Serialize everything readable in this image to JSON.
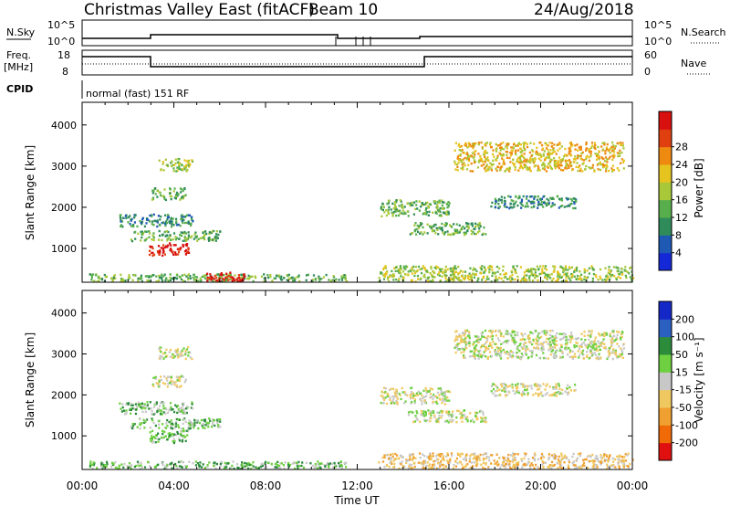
{
  "header": {
    "title": "Christmas Valley East (fitACF)",
    "beam": "Beam 10",
    "date": "24/Aug/2018"
  },
  "summary": {
    "nsky_label": "N.Sky",
    "nsky_ticks": [
      "10^5",
      "10^0"
    ],
    "nsearch_label": "N.Search",
    "nsearch_ticks": [
      "10^5",
      "10^0"
    ],
    "freq_label_top": "Freq.",
    "freq_label_unit": "[MHz]",
    "freq_ticks": [
      "18",
      "8"
    ],
    "nave_label": "Nave",
    "nave_ticks": [
      "60",
      "0"
    ],
    "cpid_label": "CPID",
    "cpid_text": "normal (fast) 151 RF"
  },
  "chart_data": [
    {
      "type": "heatmap",
      "name": "power",
      "ylabel": "Slant Range [km]",
      "yticks": [
        1000,
        2000,
        3000,
        4000
      ],
      "ylim": [
        180,
        4550
      ],
      "xlim": [
        0,
        24
      ],
      "colorbar_label": "Power [dB]",
      "colorbar_ticks": [
        "4",
        "8",
        "12",
        "16",
        "20",
        "24",
        "28"
      ],
      "colors": [
        "#1428d8",
        "#1e5ab4",
        "#2f8c5a",
        "#58ae4c",
        "#a8c83a",
        "#e6c420",
        "#ee8a10",
        "#e04010",
        "#d81010"
      ],
      "regions": [
        {
          "x": [
            2.9,
            4.7
          ],
          "y": [
            850,
            1150
          ],
          "level": 8
        },
        {
          "x": [
            2.1,
            6.0
          ],
          "y": [
            1200,
            1450
          ],
          "level": 3
        },
        {
          "x": [
            1.6,
            4.8
          ],
          "y": [
            1550,
            1850
          ],
          "level": 2
        },
        {
          "x": [
            3.0,
            4.5
          ],
          "y": [
            2200,
            2500
          ],
          "level": 3
        },
        {
          "x": [
            3.3,
            4.8
          ],
          "y": [
            2900,
            3200
          ],
          "level": 4
        },
        {
          "x": [
            13.0,
            16.0
          ],
          "y": [
            1800,
            2200
          ],
          "level": 3
        },
        {
          "x": [
            14.2,
            17.6
          ],
          "y": [
            1350,
            1650
          ],
          "level": 3
        },
        {
          "x": [
            16.2,
            23.6
          ],
          "y": [
            2900,
            3600
          ],
          "level": 5
        },
        {
          "x": [
            17.8,
            21.5
          ],
          "y": [
            2000,
            2300
          ],
          "level": 2
        },
        {
          "x": [
            0.3,
            11.5
          ],
          "y": [
            220,
            400
          ],
          "level": 3
        },
        {
          "x": [
            5.3,
            7.1
          ],
          "y": [
            220,
            450
          ],
          "level": 8
        },
        {
          "x": [
            12.9,
            24.0
          ],
          "y": [
            220,
            600
          ],
          "level": 4
        }
      ]
    },
    {
      "type": "heatmap",
      "name": "velocity",
      "ylabel": "Slant Range [km]",
      "xlabel": "Time UT",
      "yticks": [
        1000,
        2000,
        3000,
        4000
      ],
      "ylim": [
        180,
        4550
      ],
      "xlim": [
        0,
        24
      ],
      "xticks": [
        "00:00",
        "04:00",
        "08:00",
        "12:00",
        "16:00",
        "20:00",
        "00:00"
      ],
      "colorbar_label": "Velocity [m s⁻¹]",
      "colorbar_ticks": [
        "-200",
        "-100",
        "-50",
        "-15",
        "15",
        "50",
        "100",
        "200"
      ],
      "colors": [
        "#e01010",
        "#f06a08",
        "#f0a030",
        "#f0c860",
        "#c8c8c8",
        "#6ed040",
        "#2c8c3c",
        "#2c60c0",
        "#1428c8"
      ],
      "regions": [
        {
          "x": [
            2.9,
            4.7
          ],
          "y": [
            850,
            1150
          ],
          "level": 5
        },
        {
          "x": [
            2.1,
            6.0
          ],
          "y": [
            1200,
            1450
          ],
          "level": 5
        },
        {
          "x": [
            1.6,
            4.8
          ],
          "y": [
            1550,
            1850
          ],
          "level": 5
        },
        {
          "x": [
            3.0,
            4.5
          ],
          "y": [
            2200,
            2500
          ],
          "level": 4
        },
        {
          "x": [
            3.3,
            4.8
          ],
          "y": [
            2900,
            3200
          ],
          "level": 4
        },
        {
          "x": [
            13.0,
            16.0
          ],
          "y": [
            1800,
            2200
          ],
          "level": 4
        },
        {
          "x": [
            14.2,
            17.6
          ],
          "y": [
            1350,
            1650
          ],
          "level": 4
        },
        {
          "x": [
            16.2,
            23.6
          ],
          "y": [
            2900,
            3600
          ],
          "level": 4
        },
        {
          "x": [
            17.8,
            21.5
          ],
          "y": [
            2000,
            2300
          ],
          "level": 4
        },
        {
          "x": [
            0.3,
            11.5
          ],
          "y": [
            220,
            400
          ],
          "level": 5
        },
        {
          "x": [
            12.9,
            24.0
          ],
          "y": [
            220,
            600
          ],
          "level": 3
        }
      ]
    }
  ]
}
